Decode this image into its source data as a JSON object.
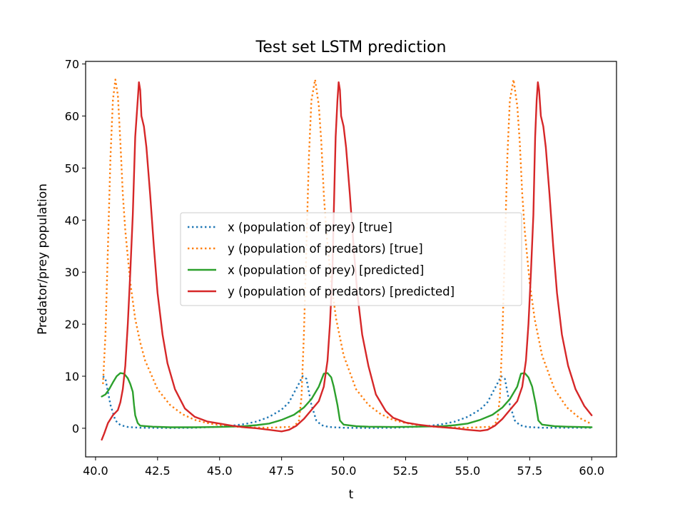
{
  "chart_data": {
    "type": "line",
    "title": "Test set LSTM prediction",
    "xlabel": "t",
    "ylabel": "Predator/prey population",
    "xlim": [
      39.6,
      61.0
    ],
    "ylim": [
      -5.5,
      70.5
    ],
    "xticks": [
      40.0,
      42.5,
      45.0,
      47.5,
      50.0,
      52.5,
      55.0,
      57.5,
      60.0
    ],
    "xtick_labels": [
      "40.0",
      "42.5",
      "45.0",
      "47.5",
      "50.0",
      "52.5",
      "55.0",
      "57.5",
      "60.0"
    ],
    "yticks": [
      0,
      10,
      20,
      30,
      40,
      50,
      60,
      70
    ],
    "ytick_labels": [
      "0",
      "10",
      "20",
      "30",
      "40",
      "50",
      "60",
      "70"
    ],
    "grid": false,
    "legend_position": "center",
    "series": [
      {
        "name": "x (population of prey) [true]",
        "color": "#1f77b4",
        "style": "dotted",
        "points": [
          [
            40.3,
            10.0
          ],
          [
            40.4,
            9.5
          ],
          [
            40.5,
            7.0
          ],
          [
            40.6,
            4.5
          ],
          [
            40.7,
            3.0
          ],
          [
            40.8,
            1.5
          ],
          [
            41.0,
            0.6
          ],
          [
            41.3,
            0.25
          ],
          [
            41.8,
            0.1
          ],
          [
            43.0,
            0.05
          ],
          [
            44.0,
            0.1
          ],
          [
            45.0,
            0.3
          ],
          [
            45.5,
            0.5
          ],
          [
            46.0,
            0.8
          ],
          [
            46.5,
            1.3
          ],
          [
            47.0,
            2.2
          ],
          [
            47.5,
            3.6
          ],
          [
            47.8,
            5.0
          ],
          [
            48.0,
            6.8
          ],
          [
            48.2,
            8.6
          ],
          [
            48.35,
            10.0
          ],
          [
            48.5,
            9.5
          ],
          [
            48.6,
            7.0
          ],
          [
            48.7,
            4.5
          ],
          [
            48.8,
            3.0
          ],
          [
            48.9,
            1.5
          ],
          [
            49.1,
            0.6
          ],
          [
            49.4,
            0.25
          ],
          [
            50.0,
            0.1
          ],
          [
            51.0,
            0.05
          ],
          [
            52.0,
            0.1
          ],
          [
            53.0,
            0.3
          ],
          [
            53.5,
            0.5
          ],
          [
            54.0,
            0.8
          ],
          [
            54.5,
            1.3
          ],
          [
            55.0,
            2.2
          ],
          [
            55.5,
            3.6
          ],
          [
            55.8,
            5.0
          ],
          [
            56.0,
            6.8
          ],
          [
            56.2,
            8.6
          ],
          [
            56.35,
            10.0
          ],
          [
            56.5,
            9.5
          ],
          [
            56.6,
            7.0
          ],
          [
            56.7,
            4.5
          ],
          [
            56.8,
            3.0
          ],
          [
            56.9,
            1.5
          ],
          [
            57.1,
            0.6
          ],
          [
            57.4,
            0.25
          ],
          [
            58.0,
            0.1
          ],
          [
            60.0,
            0.1
          ]
        ]
      },
      {
        "name": "y (population of predators) [true]",
        "color": "#ff7f0e",
        "style": "dotted",
        "points": [
          [
            40.3,
            8.5
          ],
          [
            40.4,
            18.0
          ],
          [
            40.5,
            35.0
          ],
          [
            40.6,
            52.0
          ],
          [
            40.7,
            63.0
          ],
          [
            40.8,
            67.0
          ],
          [
            40.9,
            64.0
          ],
          [
            41.0,
            55.0
          ],
          [
            41.1,
            45.0
          ],
          [
            41.2,
            38.0
          ],
          [
            41.4,
            28.0
          ],
          [
            41.6,
            21.0
          ],
          [
            41.8,
            16.5
          ],
          [
            42.0,
            13.0
          ],
          [
            42.5,
            7.5
          ],
          [
            43.0,
            4.5
          ],
          [
            43.5,
            2.7
          ],
          [
            44.0,
            1.6
          ],
          [
            44.5,
            1.0
          ],
          [
            45.0,
            0.6
          ],
          [
            45.5,
            0.35
          ],
          [
            46.0,
            0.2
          ],
          [
            47.0,
            0.1
          ],
          [
            48.0,
            0.3
          ],
          [
            48.2,
            1.5
          ],
          [
            48.3,
            6.0
          ],
          [
            48.4,
            18.0
          ],
          [
            48.5,
            35.0
          ],
          [
            48.6,
            52.0
          ],
          [
            48.7,
            63.0
          ],
          [
            48.85,
            67.0
          ],
          [
            49.0,
            62.0
          ],
          [
            49.1,
            55.0
          ],
          [
            49.2,
            45.0
          ],
          [
            49.3,
            38.0
          ],
          [
            49.5,
            28.0
          ],
          [
            49.7,
            21.0
          ],
          [
            50.0,
            14.0
          ],
          [
            50.5,
            7.5
          ],
          [
            51.0,
            4.5
          ],
          [
            51.5,
            2.7
          ],
          [
            52.0,
            1.6
          ],
          [
            52.5,
            1.0
          ],
          [
            53.0,
            0.6
          ],
          [
            53.5,
            0.35
          ],
          [
            54.0,
            0.2
          ],
          [
            55.0,
            0.1
          ],
          [
            56.0,
            0.3
          ],
          [
            56.2,
            1.5
          ],
          [
            56.3,
            6.0
          ],
          [
            56.4,
            18.0
          ],
          [
            56.5,
            35.0
          ],
          [
            56.6,
            52.0
          ],
          [
            56.7,
            63.0
          ],
          [
            56.85,
            67.0
          ],
          [
            57.0,
            62.0
          ],
          [
            57.1,
            55.0
          ],
          [
            57.2,
            45.0
          ],
          [
            57.3,
            38.0
          ],
          [
            57.5,
            28.0
          ],
          [
            57.7,
            21.0
          ],
          [
            58.0,
            14.0
          ],
          [
            58.5,
            7.5
          ],
          [
            59.0,
            4.0
          ],
          [
            59.5,
            2.0
          ],
          [
            60.0,
            0.8
          ]
        ]
      },
      {
        "name": "x (population of prey) [predicted]",
        "color": "#2ca02c",
        "style": "solid",
        "points": [
          [
            40.25,
            6.1
          ],
          [
            40.4,
            6.5
          ],
          [
            40.55,
            7.5
          ],
          [
            40.7,
            8.8
          ],
          [
            40.85,
            10.0
          ],
          [
            41.0,
            10.6
          ],
          [
            41.15,
            10.5
          ],
          [
            41.3,
            9.6
          ],
          [
            41.4,
            8.5
          ],
          [
            41.5,
            7.0
          ],
          [
            41.55,
            4.5
          ],
          [
            41.6,
            2.5
          ],
          [
            41.7,
            1.0
          ],
          [
            41.8,
            0.5
          ],
          [
            42.3,
            0.3
          ],
          [
            43.0,
            0.2
          ],
          [
            44.0,
            0.2
          ],
          [
            45.0,
            0.25
          ],
          [
            46.0,
            0.4
          ],
          [
            46.5,
            0.6
          ],
          [
            47.0,
            0.9
          ],
          [
            47.5,
            1.6
          ],
          [
            48.0,
            2.6
          ],
          [
            48.4,
            4.0
          ],
          [
            48.7,
            5.6
          ],
          [
            49.0,
            8.0
          ],
          [
            49.2,
            10.5
          ],
          [
            49.35,
            10.6
          ],
          [
            49.5,
            9.8
          ],
          [
            49.6,
            8.0
          ],
          [
            49.75,
            4.5
          ],
          [
            49.85,
            1.5
          ],
          [
            50.0,
            0.7
          ],
          [
            50.5,
            0.4
          ],
          [
            51.0,
            0.3
          ],
          [
            52.0,
            0.25
          ],
          [
            53.0,
            0.3
          ],
          [
            54.0,
            0.4
          ],
          [
            54.5,
            0.6
          ],
          [
            55.0,
            0.9
          ],
          [
            55.5,
            1.6
          ],
          [
            56.0,
            2.6
          ],
          [
            56.4,
            4.0
          ],
          [
            56.7,
            5.6
          ],
          [
            57.0,
            8.0
          ],
          [
            57.15,
            10.5
          ],
          [
            57.3,
            10.6
          ],
          [
            57.45,
            9.8
          ],
          [
            57.6,
            8.0
          ],
          [
            57.75,
            4.5
          ],
          [
            57.85,
            1.5
          ],
          [
            58.0,
            0.7
          ],
          [
            58.5,
            0.4
          ],
          [
            59.0,
            0.3
          ],
          [
            60.0,
            0.2
          ]
        ]
      },
      {
        "name": "y (population of predators) [predicted]",
        "color": "#d62728",
        "style": "solid",
        "points": [
          [
            40.25,
            -2.2
          ],
          [
            40.35,
            -1.0
          ],
          [
            40.5,
            1.0
          ],
          [
            40.7,
            2.5
          ],
          [
            40.9,
            3.5
          ],
          [
            41.0,
            5.0
          ],
          [
            41.1,
            7.5
          ],
          [
            41.2,
            12.0
          ],
          [
            41.3,
            20.0
          ],
          [
            41.4,
            30.0
          ],
          [
            41.5,
            41.0
          ],
          [
            41.6,
            56.0
          ],
          [
            41.7,
            63.0
          ],
          [
            41.75,
            66.5
          ],
          [
            41.8,
            65.0
          ],
          [
            41.85,
            60.0
          ],
          [
            41.95,
            58.0
          ],
          [
            42.05,
            54.0
          ],
          [
            42.2,
            45.0
          ],
          [
            42.35,
            35.0
          ],
          [
            42.5,
            26.0
          ],
          [
            42.7,
            18.0
          ],
          [
            42.9,
            12.5
          ],
          [
            43.2,
            7.5
          ],
          [
            43.6,
            3.8
          ],
          [
            44.0,
            2.2
          ],
          [
            44.5,
            1.3
          ],
          [
            45.0,
            0.9
          ],
          [
            45.5,
            0.5
          ],
          [
            46.0,
            0.2
          ],
          [
            46.5,
            0.0
          ],
          [
            47.0,
            -0.3
          ],
          [
            47.5,
            -0.6
          ],
          [
            47.8,
            -0.3
          ],
          [
            48.1,
            0.5
          ],
          [
            48.4,
            1.8
          ],
          [
            48.7,
            3.5
          ],
          [
            49.0,
            5.2
          ],
          [
            49.2,
            8.0
          ],
          [
            49.35,
            13.0
          ],
          [
            49.45,
            20.0
          ],
          [
            49.55,
            30.0
          ],
          [
            49.6,
            41.0
          ],
          [
            49.68,
            56.0
          ],
          [
            49.75,
            63.0
          ],
          [
            49.8,
            66.5
          ],
          [
            49.85,
            65.0
          ],
          [
            49.9,
            60.0
          ],
          [
            50.0,
            58.0
          ],
          [
            50.1,
            54.0
          ],
          [
            50.25,
            45.0
          ],
          [
            50.4,
            35.0
          ],
          [
            50.55,
            26.0
          ],
          [
            50.75,
            18.0
          ],
          [
            51.0,
            12.0
          ],
          [
            51.3,
            6.5
          ],
          [
            51.7,
            3.3
          ],
          [
            52.0,
            2.0
          ],
          [
            52.5,
            1.1
          ],
          [
            53.0,
            0.7
          ],
          [
            53.5,
            0.4
          ],
          [
            54.0,
            0.2
          ],
          [
            54.5,
            0.0
          ],
          [
            55.0,
            -0.3
          ],
          [
            55.5,
            -0.5
          ],
          [
            55.8,
            -0.3
          ],
          [
            56.1,
            0.5
          ],
          [
            56.4,
            1.8
          ],
          [
            56.7,
            3.5
          ],
          [
            57.0,
            5.2
          ],
          [
            57.2,
            8.0
          ],
          [
            57.35,
            13.0
          ],
          [
            57.45,
            20.0
          ],
          [
            57.55,
            30.0
          ],
          [
            57.65,
            41.0
          ],
          [
            57.72,
            56.0
          ],
          [
            57.78,
            63.0
          ],
          [
            57.83,
            66.5
          ],
          [
            57.88,
            65.0
          ],
          [
            57.95,
            60.0
          ],
          [
            58.05,
            58.0
          ],
          [
            58.15,
            54.0
          ],
          [
            58.3,
            45.0
          ],
          [
            58.45,
            35.0
          ],
          [
            58.6,
            26.0
          ],
          [
            58.8,
            18.0
          ],
          [
            59.05,
            12.0
          ],
          [
            59.35,
            7.5
          ],
          [
            59.7,
            4.3
          ],
          [
            60.0,
            2.5
          ]
        ]
      }
    ]
  }
}
